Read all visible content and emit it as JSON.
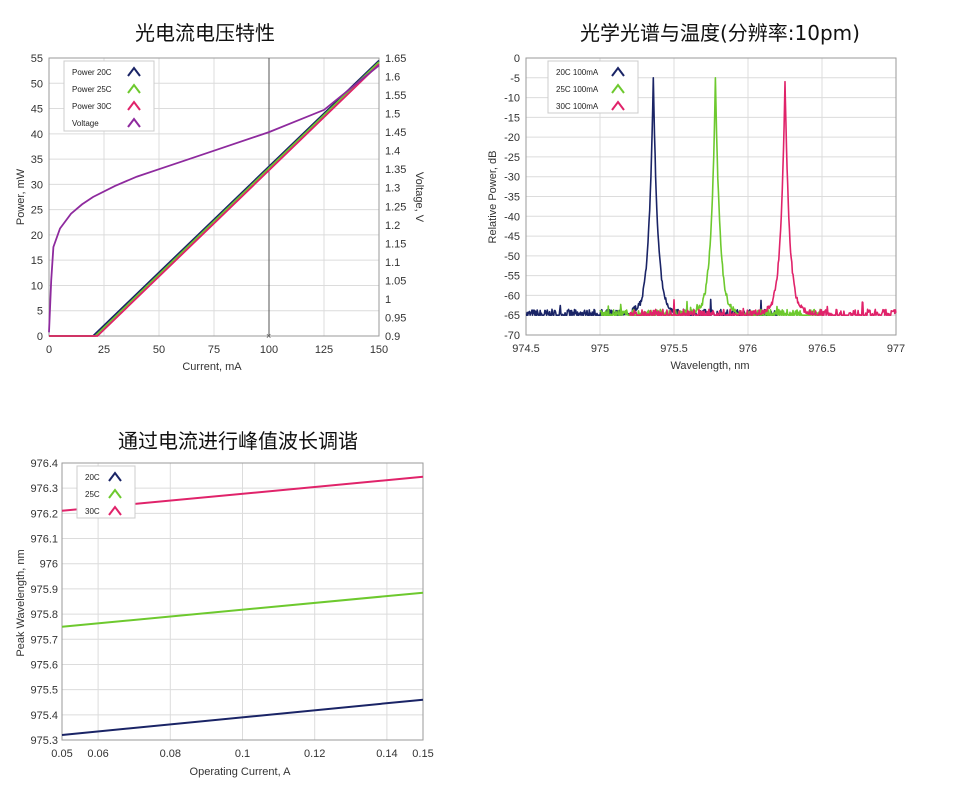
{
  "chart_data": [
    {
      "type": "line",
      "title": "光电流电压特性",
      "xlabel": "Current, mA",
      "ylabel": "Power, mW",
      "y2label": "Voltage, V",
      "xlim": [
        0,
        150
      ],
      "ylim": [
        0,
        55
      ],
      "y2lim": [
        0.9,
        1.65
      ],
      "xticks": [
        "0",
        "25",
        "50",
        "75",
        "100",
        "125",
        "150"
      ],
      "yticks": [
        "0",
        "5",
        "10",
        "15",
        "20",
        "25",
        "30",
        "35",
        "40",
        "45",
        "50",
        "55"
      ],
      "y2ticks": [
        "0.9",
        "0.95",
        "1",
        "1.05",
        "1.1",
        "1.15",
        "1.2",
        "1.25",
        "1.3",
        "1.35",
        "1.4",
        "1.45",
        "1.5",
        "1.55",
        "1.6",
        "1.65"
      ],
      "grid": true,
      "legend": "top-left",
      "cursor_x": 100,
      "series": [
        {
          "name": "Power 20C",
          "color": "#1a2466",
          "axis": "left",
          "x": [
            0,
            19,
            20,
            150
          ],
          "y": [
            0,
            0,
            0,
            54.5
          ]
        },
        {
          "name": "Power 25C",
          "color": "#6dc92e",
          "axis": "left",
          "x": [
            0,
            20,
            21,
            150
          ],
          "y": [
            0,
            0,
            0,
            54.2
          ]
        },
        {
          "name": "Power 30C",
          "color": "#e0236a",
          "axis": "left",
          "x": [
            0,
            21,
            22,
            150
          ],
          "y": [
            0,
            0,
            0,
            53.8
          ]
        },
        {
          "name": "Voltage",
          "color": "#8e2a9e",
          "axis": "right",
          "x": [
            0,
            1,
            2,
            5,
            10,
            15,
            20,
            30,
            40,
            50,
            60,
            75,
            100,
            125,
            150
          ],
          "y": [
            0.91,
            1.05,
            1.14,
            1.19,
            1.23,
            1.255,
            1.275,
            1.305,
            1.33,
            1.35,
            1.37,
            1.4,
            1.45,
            1.51,
            1.63
          ]
        }
      ]
    },
    {
      "type": "line",
      "title": "光学光谱与温度(分辨率:10pm)",
      "xlabel": "Wavelength, nm",
      "ylabel": "Relative Power, dB",
      "xlim": [
        974.5,
        977
      ],
      "ylim": [
        -70,
        0
      ],
      "xticks": [
        "974.5",
        "975",
        "975.5",
        "976",
        "976.5",
        "977"
      ],
      "yticks": [
        "-70",
        "-65",
        "-60",
        "-55",
        "-50",
        "-45",
        "-40",
        "-35",
        "-30",
        "-25",
        "-20",
        "-15",
        "-10",
        "-5",
        "0"
      ],
      "grid": true,
      "legend": "top-left",
      "noise_floor_db": -65,
      "series": [
        {
          "name": "20C 100mA",
          "color": "#1a2466",
          "peak": 975.36,
          "peak_db": -5,
          "x_start": 974.5,
          "x_end": 976.2
        },
        {
          "name": "25C 100mA",
          "color": "#6dc92e",
          "peak": 975.78,
          "peak_db": -5,
          "x_start": 975.0,
          "x_end": 976.5
        },
        {
          "name": "30C 100mA",
          "color": "#e0236a",
          "peak": 976.25,
          "peak_db": -6,
          "x_start": 975.2,
          "x_end": 977
        }
      ]
    },
    {
      "type": "line",
      "title": "通过电流进行峰值波长调谐",
      "xlabel": "Operating Current, A",
      "ylabel": "Peak Wavelength, nm",
      "xlim": [
        0.05,
        0.15
      ],
      "ylim": [
        975.3,
        976.4
      ],
      "xticks": [
        "0.05",
        "0.06",
        "0.08",
        "0.1",
        "0.12",
        "0.14",
        "0.15"
      ],
      "yticks": [
        "975.3",
        "975.4",
        "975.5",
        "975.6",
        "975.7",
        "975.8",
        "975.9",
        "976",
        "976.1",
        "976.2",
        "976.3",
        "976.4"
      ],
      "grid": true,
      "legend": "top-left",
      "series": [
        {
          "name": "20C",
          "color": "#1a2466",
          "x": [
            0.05,
            0.15
          ],
          "y": [
            975.32,
            975.46
          ]
        },
        {
          "name": "25C",
          "color": "#6dc92e",
          "x": [
            0.05,
            0.15
          ],
          "y": [
            975.75,
            975.885
          ]
        },
        {
          "name": "30C",
          "color": "#e0236a",
          "x": [
            0.05,
            0.15
          ],
          "y": [
            976.21,
            976.345
          ]
        }
      ]
    }
  ]
}
